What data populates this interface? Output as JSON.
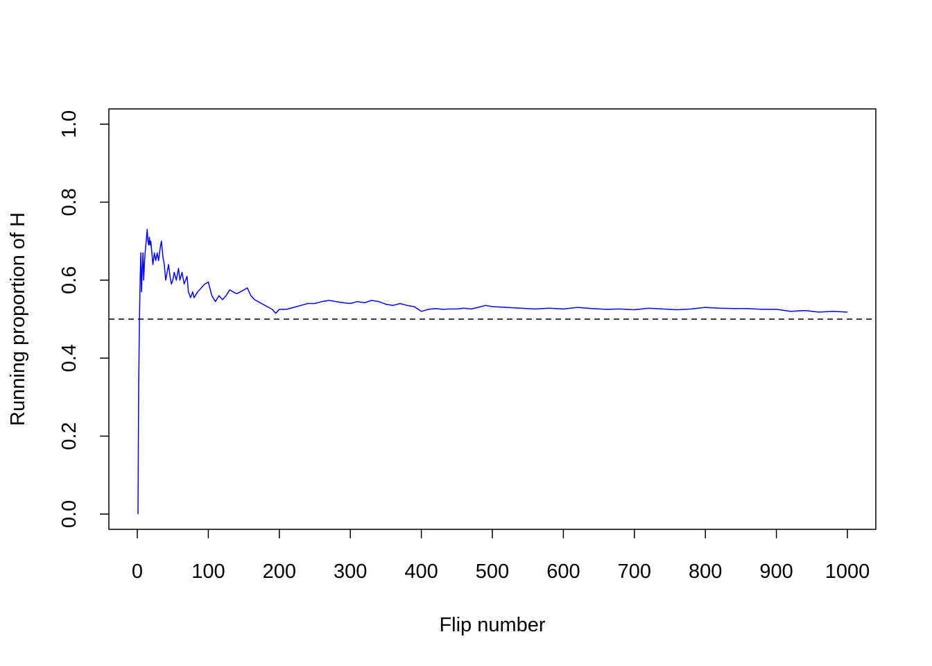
{
  "chart_data": {
    "type": "line",
    "title": "",
    "xlabel": "Flip number",
    "ylabel": "Running proportion of H",
    "xlim": [
      0,
      1000
    ],
    "ylim": [
      0,
      1
    ],
    "x_ticks": [
      "0",
      "100",
      "200",
      "300",
      "400",
      "500",
      "600",
      "700",
      "800",
      "900",
      "1000"
    ],
    "y_ticks": [
      "0.0",
      "0.2",
      "0.4",
      "0.6",
      "0.8",
      "1.0"
    ],
    "grid": false,
    "reference_line": {
      "y": 0.5,
      "style": "dashed",
      "color": "#000000"
    },
    "series": [
      {
        "color": "#0000ff",
        "x": [
          1,
          2,
          3,
          4,
          5,
          6,
          7,
          8,
          9,
          10,
          11,
          12,
          13,
          14,
          15,
          16,
          17,
          18,
          19,
          20,
          22,
          24,
          26,
          28,
          30,
          32,
          34,
          36,
          38,
          40,
          42,
          44,
          46,
          48,
          50,
          52,
          55,
          58,
          60,
          63,
          66,
          70,
          72,
          75,
          78,
          80,
          85,
          90,
          95,
          100,
          105,
          110,
          115,
          120,
          125,
          130,
          135,
          140,
          145,
          150,
          155,
          160,
          165,
          170,
          175,
          180,
          185,
          190,
          195,
          200,
          210,
          220,
          230,
          240,
          250,
          260,
          270,
          280,
          290,
          300,
          310,
          320,
          330,
          340,
          350,
          360,
          370,
          380,
          390,
          400,
          410,
          420,
          430,
          440,
          450,
          460,
          470,
          480,
          490,
          500,
          520,
          540,
          560,
          580,
          600,
          620,
          640,
          660,
          680,
          700,
          720,
          740,
          760,
          780,
          800,
          820,
          840,
          860,
          880,
          900,
          920,
          940,
          960,
          980,
          1000
        ],
        "y": [
          0.0,
          0.33,
          0.5,
          0.6,
          0.67,
          0.57,
          0.63,
          0.67,
          0.6,
          0.64,
          0.67,
          0.69,
          0.71,
          0.73,
          0.7,
          0.69,
          0.71,
          0.69,
          0.7,
          0.68,
          0.64,
          0.67,
          0.65,
          0.67,
          0.65,
          0.68,
          0.7,
          0.66,
          0.64,
          0.6,
          0.62,
          0.64,
          0.61,
          0.59,
          0.6,
          0.62,
          0.6,
          0.63,
          0.6,
          0.62,
          0.59,
          0.61,
          0.57,
          0.555,
          0.57,
          0.555,
          0.57,
          0.58,
          0.59,
          0.595,
          0.56,
          0.545,
          0.56,
          0.55,
          0.56,
          0.575,
          0.57,
          0.565,
          0.57,
          0.575,
          0.58,
          0.56,
          0.55,
          0.545,
          0.54,
          0.535,
          0.53,
          0.525,
          0.515,
          0.525,
          0.525,
          0.53,
          0.535,
          0.54,
          0.54,
          0.545,
          0.548,
          0.545,
          0.542,
          0.54,
          0.545,
          0.542,
          0.548,
          0.545,
          0.538,
          0.535,
          0.54,
          0.535,
          0.532,
          0.52,
          0.525,
          0.527,
          0.525,
          0.526,
          0.526,
          0.528,
          0.526,
          0.53,
          0.535,
          0.532,
          0.53,
          0.528,
          0.526,
          0.528,
          0.526,
          0.53,
          0.527,
          0.525,
          0.526,
          0.524,
          0.528,
          0.526,
          0.524,
          0.526,
          0.53,
          0.528,
          0.527,
          0.527,
          0.525,
          0.525,
          0.52,
          0.522,
          0.518,
          0.52,
          0.518
        ]
      }
    ]
  }
}
